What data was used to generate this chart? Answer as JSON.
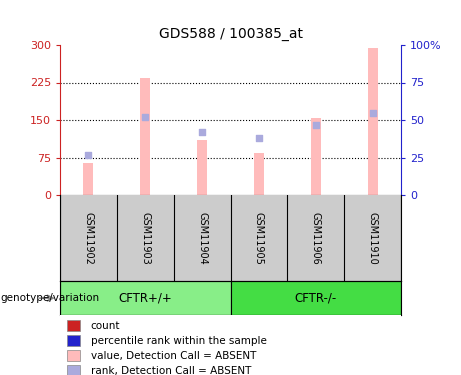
{
  "title": "GDS588 / 100385_at",
  "samples": [
    "GSM11902",
    "GSM11903",
    "GSM11904",
    "GSM11905",
    "GSM11906",
    "GSM11910"
  ],
  "pink_bar_values": [
    65,
    235,
    110,
    85,
    155,
    295
  ],
  "blue_square_values": [
    27,
    52,
    42,
    38,
    47,
    55
  ],
  "left_ylim": [
    0,
    300
  ],
  "right_ylim": [
    0,
    100
  ],
  "left_yticks": [
    0,
    75,
    150,
    225,
    300
  ],
  "right_yticks": [
    0,
    25,
    50,
    75,
    100
  ],
  "left_yticklabels": [
    "0",
    "75",
    "150",
    "225",
    "300"
  ],
  "right_yticklabels": [
    "0",
    "25",
    "50",
    "75",
    "100%"
  ],
  "left_tick_color": "#cc2222",
  "right_tick_color": "#2222cc",
  "pink_bar_color": "#ffbbbb",
  "blue_square_color": "#aaaadd",
  "grid_yticks": [
    75,
    150,
    225
  ],
  "sample_bg_color": "#cccccc",
  "cftr_pos_color": "#88ee88",
  "cftr_neg_color": "#44dd44",
  "group_labels": [
    "CFTR+/+",
    "CFTR-/-"
  ],
  "group_split": 3,
  "legend_items": [
    {
      "label": "count",
      "color": "#cc2222"
    },
    {
      "label": "percentile rank within the sample",
      "color": "#2222cc"
    },
    {
      "label": "value, Detection Call = ABSENT",
      "color": "#ffbbbb"
    },
    {
      "label": "rank, Detection Call = ABSENT",
      "color": "#aaaadd"
    }
  ],
  "genotype_label": "genotype/variation",
  "title_fontsize": 10,
  "tick_fontsize": 8,
  "sample_fontsize": 7,
  "legend_fontsize": 7.5,
  "group_fontsize": 8.5
}
